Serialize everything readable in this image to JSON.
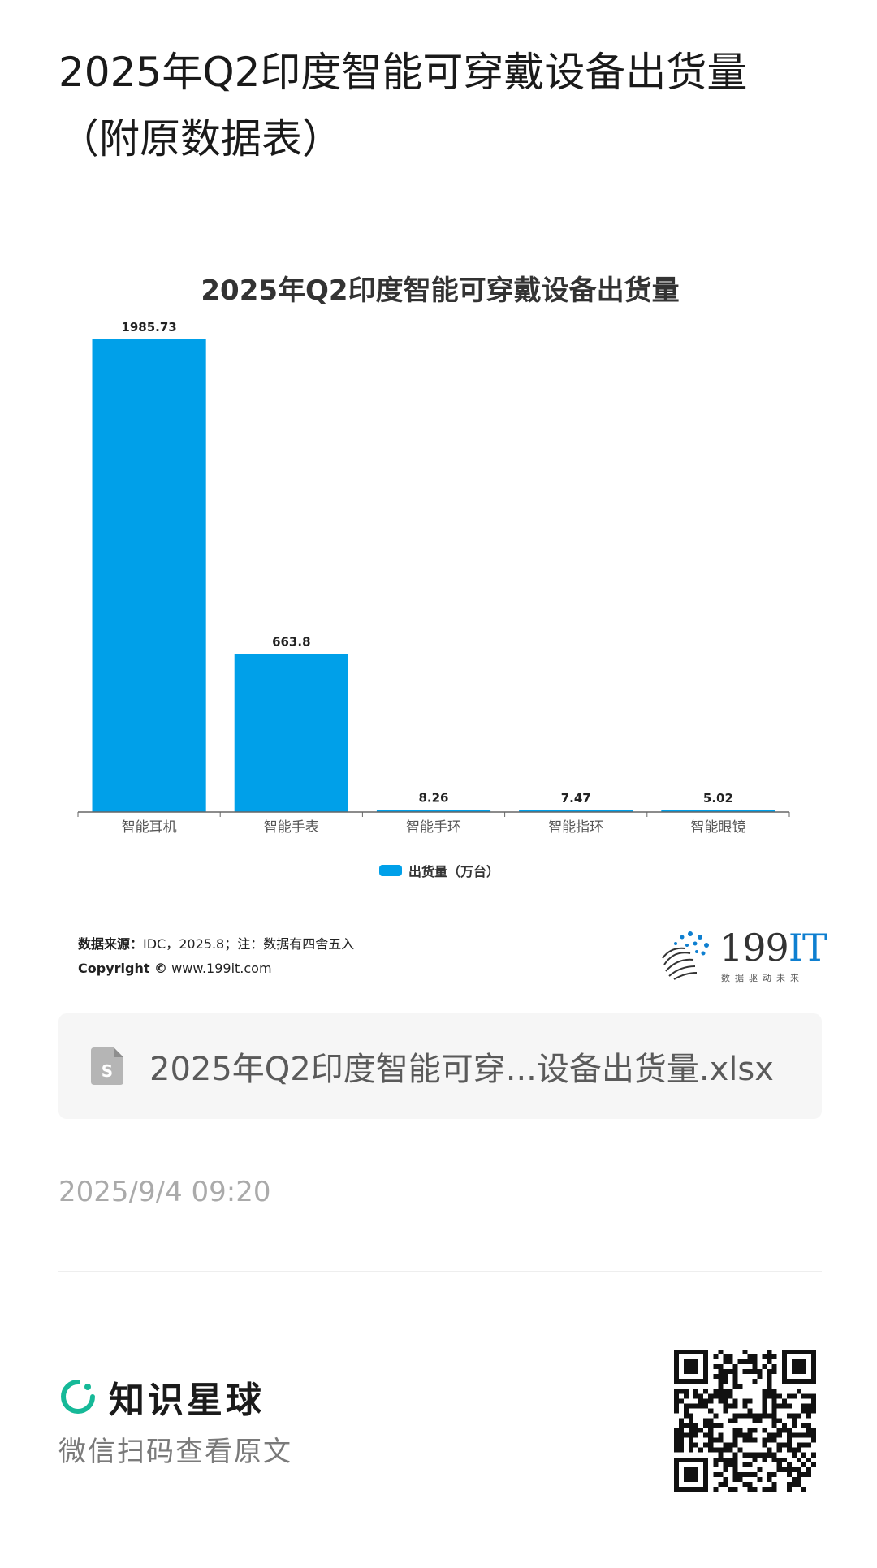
{
  "post": {
    "title": "2025年Q2印度智能可穿戴设备出货量（附原数据表）",
    "time": "2025/9/4 09:20"
  },
  "chart_data": {
    "type": "bar",
    "title": "2025年Q2印度智能可穿戴设备出货量",
    "categories": [
      "智能耳机",
      "智能手表",
      "智能手环",
      "智能指环",
      "智能眼镜"
    ],
    "series": [
      {
        "name": "出货量（万台）",
        "values": [
          1985.73,
          663.8,
          8.26,
          7.47,
          5.02
        ],
        "color": "#00a0e9"
      }
    ],
    "data_labels": [
      "1985.73",
      "663.8",
      "8.26",
      "7.47",
      "5.02"
    ],
    "ylim": [
      0,
      1985.73
    ],
    "grid": false,
    "legend_position": "bottom"
  },
  "source": {
    "label": "数据来源：",
    "text": "IDC，2025.8；注：数据有四舍五入",
    "copyright_label": "Copyright ©",
    "copyright_site": "www.199it.com"
  },
  "logo": {
    "number": "199",
    "suffix": "IT",
    "tagline": "数据驱动未来"
  },
  "file": {
    "name": "2025年Q2印度智能可穿...设备出货量.xlsx",
    "icon": "spreadsheet-file-icon"
  },
  "brand": {
    "name": "知识星球",
    "subtitle": "微信扫码查看原文",
    "icon": "zsxq-logo-icon",
    "accent": "#16b998"
  }
}
